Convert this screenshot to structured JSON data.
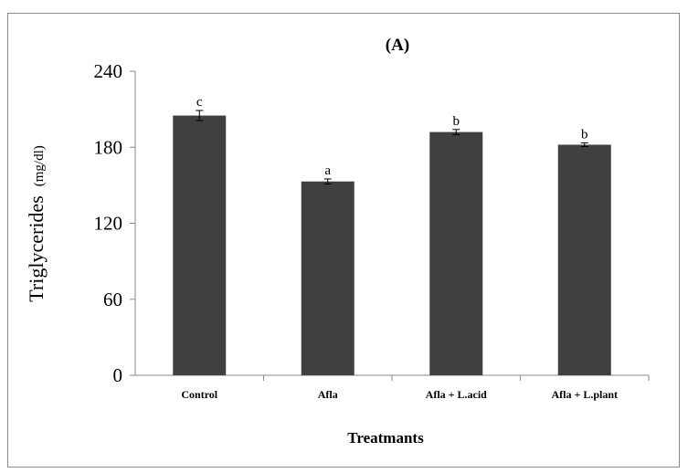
{
  "chart_data": {
    "type": "bar",
    "title": "(A)",
    "xlabel": "Treatmants",
    "ylabel": "Triglycerides",
    "ylabel_unit": "(mg/dl)",
    "categories": [
      "Control",
      "Afla",
      "Afla + L.acid",
      "Afla + L.plant"
    ],
    "values": [
      205,
      153,
      192,
      182
    ],
    "errors": [
      4,
      2,
      2,
      1.5
    ],
    "significance_labels": [
      "c",
      "a",
      "b",
      "b"
    ],
    "yticks": [
      0,
      60,
      120,
      180,
      240
    ],
    "ylim": [
      0,
      240
    ],
    "grid": false,
    "legend": "none",
    "bar_color": "#404040"
  }
}
